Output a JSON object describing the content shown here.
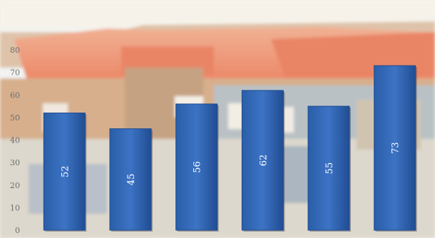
{
  "chart_data": {
    "type": "bar",
    "title": "",
    "xlabel": "",
    "ylabel": "",
    "categories": [
      "",
      "",
      "",
      "",
      "",
      ""
    ],
    "values": [
      52,
      45,
      56,
      62,
      55,
      73
    ],
    "data_labels": [
      "52",
      "45",
      "56",
      "62",
      "55",
      "73"
    ],
    "ylim": [
      0,
      80
    ],
    "yticks": [
      0,
      10,
      20,
      30,
      40,
      50,
      60,
      70,
      80
    ],
    "ytick_labels": [
      "0",
      "10",
      "20",
      "30",
      "40",
      "50",
      "60",
      "70",
      "80"
    ],
    "grid": false,
    "legend": "none",
    "data_label_orientation": "vertical",
    "colors": {
      "bar": "#2d63b4",
      "bar_dark": "#1f4b8f",
      "tick_text": "#6d6d6d",
      "value_text": "#ffffff",
      "background_sky": "#eef3f5",
      "background_roof": "#e86b3e",
      "background_building": "#c89a6b",
      "background_lower": "#d8d5cc"
    },
    "background": "photo-of-red-roofed-buildings"
  }
}
